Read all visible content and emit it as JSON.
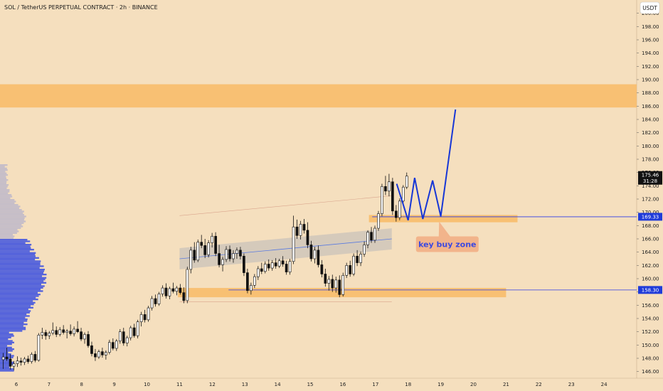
{
  "header": {
    "title": "SOL / TetherUS PERPETUAL CONTRACT · 2h · BINANCE"
  },
  "currency_button": {
    "label": "USDT"
  },
  "colors": {
    "background": "#f5dfbe",
    "zone": "#f8bc6a",
    "bull": "#ffffff",
    "bear": "#111111",
    "volume_profile": "#3a4fe0",
    "price_line": "#2b3be6",
    "drawing": "#1636d6",
    "badge_bg": "#1f3bd9",
    "annotation_bg": "#f2b48b"
  },
  "chart_data": {
    "type": "candlestick",
    "symbol": "SOL / TetherUS PERPETUAL CONTRACT",
    "interval": "2h",
    "exchange": "BINANCE",
    "y_axis": {
      "range": [
        145,
        202
      ],
      "ticks": [
        146,
        148,
        150,
        152,
        154,
        156,
        158,
        160,
        162,
        164,
        166,
        168,
        170,
        172,
        174,
        176,
        178,
        180,
        182,
        184,
        186,
        188,
        190,
        192,
        194,
        196,
        198,
        200
      ],
      "tick_labels": [
        "146.00",
        "148.00",
        "150.00",
        "152.00",
        "154.00",
        "156.00",
        "158.00",
        "160.00",
        "162.00",
        "164.00",
        "166.00",
        "168.00",
        "170.00",
        "172.00",
        "174.00",
        "176.00",
        "178.00",
        "180.00",
        "182.00",
        "184.00",
        "186.00",
        "188.00",
        "190.00",
        "192.00",
        "194.00",
        "196.00",
        "198.00",
        "200.00"
      ]
    },
    "x_axis": {
      "range": [
        5.5,
        25.0
      ],
      "ticks": [
        6,
        7,
        8,
        9,
        10,
        11,
        12,
        13,
        14,
        15,
        16,
        17,
        18,
        19,
        20,
        21,
        22,
        23,
        24
      ],
      "tick_labels": [
        "6",
        "7",
        "8",
        "9",
        "10",
        "11",
        "12",
        "13",
        "14",
        "15",
        "16",
        "17",
        "18",
        "19",
        "20",
        "21",
        "22",
        "23",
        "24"
      ]
    },
    "zones": [
      {
        "from": 185.8,
        "to": 189.3,
        "x_start": 5.5,
        "x_end": 25.0
      },
      {
        "from": 168.5,
        "to": 169.6,
        "x_start": 16.8,
        "x_end": 21.35
      },
      {
        "from": 157.2,
        "to": 158.6,
        "x_start": 10.95,
        "x_end": 21.0
      }
    ],
    "horizontal_lines": [
      {
        "value": 169.33,
        "x_start": 16.9
      },
      {
        "value": 158.3,
        "x_start": 12.5
      }
    ],
    "price_badges": [
      {
        "value": 175.46,
        "label": "175.46",
        "sub_label": "31:28",
        "style": "last"
      },
      {
        "value": 169.33,
        "label": "169.33",
        "style": "level"
      },
      {
        "value": 158.3,
        "label": "158.30",
        "style": "level"
      }
    ],
    "projection": {
      "x": [
        17.65,
        18.0,
        18.2,
        18.45,
        18.75,
        19.0,
        19.45
      ],
      "y": [
        174.3,
        168.8,
        175.2,
        169.0,
        174.8,
        169.4,
        185.5
      ]
    },
    "annotation": {
      "text": "key buy zone",
      "x": 19.2,
      "y": 165.2,
      "pointer_x": 18.95,
      "pointer_y": 168.6
    },
    "candles": [
      {
        "o": 147.8,
        "h": 148.8,
        "l": 146.4,
        "c": 148.2
      },
      {
        "o": 148.2,
        "h": 149.6,
        "l": 147.6,
        "c": 147.9
      },
      {
        "o": 147.9,
        "h": 148.6,
        "l": 146.3,
        "c": 146.8
      },
      {
        "o": 146.8,
        "h": 147.6,
        "l": 146.2,
        "c": 147.2
      },
      {
        "o": 147.2,
        "h": 148.3,
        "l": 146.7,
        "c": 147.6
      },
      {
        "o": 147.6,
        "h": 148.1,
        "l": 146.9,
        "c": 147.4
      },
      {
        "o": 147.4,
        "h": 148.2,
        "l": 147.0,
        "c": 147.9
      },
      {
        "o": 147.9,
        "h": 148.4,
        "l": 147.2,
        "c": 147.5
      },
      {
        "o": 147.5,
        "h": 148.9,
        "l": 147.2,
        "c": 148.6
      },
      {
        "o": 148.6,
        "h": 149.1,
        "l": 147.4,
        "c": 147.7
      },
      {
        "o": 147.7,
        "h": 151.8,
        "l": 147.5,
        "c": 151.5
      },
      {
        "o": 151.5,
        "h": 152.6,
        "l": 150.9,
        "c": 151.9
      },
      {
        "o": 151.9,
        "h": 152.3,
        "l": 150.8,
        "c": 151.4
      },
      {
        "o": 151.4,
        "h": 152.1,
        "l": 150.9,
        "c": 151.8
      },
      {
        "o": 151.8,
        "h": 153.4,
        "l": 151.5,
        "c": 152.2
      },
      {
        "o": 152.2,
        "h": 152.8,
        "l": 151.2,
        "c": 151.6
      },
      {
        "o": 151.6,
        "h": 152.7,
        "l": 151.3,
        "c": 152.3
      },
      {
        "o": 152.3,
        "h": 153.0,
        "l": 151.6,
        "c": 151.9
      },
      {
        "o": 151.9,
        "h": 152.4,
        "l": 151.0,
        "c": 152.1
      },
      {
        "o": 152.1,
        "h": 153.1,
        "l": 151.4,
        "c": 151.7
      },
      {
        "o": 151.7,
        "h": 152.8,
        "l": 151.3,
        "c": 152.4
      },
      {
        "o": 152.4,
        "h": 153.6,
        "l": 151.8,
        "c": 152.0
      },
      {
        "o": 152.0,
        "h": 152.6,
        "l": 150.6,
        "c": 150.9
      },
      {
        "o": 150.9,
        "h": 151.9,
        "l": 150.2,
        "c": 151.6
      },
      {
        "o": 151.6,
        "h": 152.1,
        "l": 149.6,
        "c": 149.9
      },
      {
        "o": 149.9,
        "h": 150.5,
        "l": 148.3,
        "c": 148.7
      },
      {
        "o": 148.7,
        "h": 149.4,
        "l": 147.6,
        "c": 148.2
      },
      {
        "o": 148.2,
        "h": 149.3,
        "l": 147.9,
        "c": 149.0
      },
      {
        "o": 149.0,
        "h": 149.6,
        "l": 148.1,
        "c": 148.5
      },
      {
        "o": 148.5,
        "h": 149.2,
        "l": 147.8,
        "c": 148.9
      },
      {
        "o": 148.9,
        "h": 150.8,
        "l": 148.6,
        "c": 150.4
      },
      {
        "o": 150.4,
        "h": 151.0,
        "l": 149.2,
        "c": 149.5
      },
      {
        "o": 149.5,
        "h": 150.9,
        "l": 149.1,
        "c": 150.6
      },
      {
        "o": 150.6,
        "h": 152.4,
        "l": 150.2,
        "c": 152.0
      },
      {
        "o": 152.0,
        "h": 152.6,
        "l": 149.9,
        "c": 150.3
      },
      {
        "o": 150.3,
        "h": 151.4,
        "l": 149.8,
        "c": 151.1
      },
      {
        "o": 151.1,
        "h": 152.9,
        "l": 150.7,
        "c": 152.6
      },
      {
        "o": 152.6,
        "h": 153.2,
        "l": 151.1,
        "c": 151.4
      },
      {
        "o": 151.4,
        "h": 153.8,
        "l": 151.0,
        "c": 153.5
      },
      {
        "o": 153.5,
        "h": 155.0,
        "l": 152.8,
        "c": 154.6
      },
      {
        "o": 154.6,
        "h": 155.3,
        "l": 153.4,
        "c": 153.8
      },
      {
        "o": 153.8,
        "h": 155.9,
        "l": 153.5,
        "c": 155.6
      },
      {
        "o": 155.6,
        "h": 157.4,
        "l": 155.2,
        "c": 157.0
      },
      {
        "o": 157.0,
        "h": 157.6,
        "l": 155.8,
        "c": 156.2
      },
      {
        "o": 156.2,
        "h": 158.0,
        "l": 155.9,
        "c": 157.7
      },
      {
        "o": 157.7,
        "h": 159.0,
        "l": 157.3,
        "c": 158.6
      },
      {
        "o": 158.6,
        "h": 159.3,
        "l": 157.0,
        "c": 157.4
      },
      {
        "o": 157.4,
        "h": 158.8,
        "l": 156.9,
        "c": 158.5
      },
      {
        "o": 158.5,
        "h": 159.4,
        "l": 157.8,
        "c": 158.1
      },
      {
        "o": 158.1,
        "h": 158.9,
        "l": 157.5,
        "c": 158.6
      },
      {
        "o": 158.6,
        "h": 159.2,
        "l": 157.6,
        "c": 157.9
      },
      {
        "o": 157.9,
        "h": 158.7,
        "l": 156.3,
        "c": 156.7
      },
      {
        "o": 156.7,
        "h": 161.8,
        "l": 156.3,
        "c": 161.4
      },
      {
        "o": 161.4,
        "h": 164.8,
        "l": 160.8,
        "c": 164.3
      },
      {
        "o": 164.3,
        "h": 165.5,
        "l": 162.4,
        "c": 162.8
      },
      {
        "o": 162.8,
        "h": 165.9,
        "l": 162.5,
        "c": 165.5
      },
      {
        "o": 165.5,
        "h": 166.6,
        "l": 164.6,
        "c": 165.0
      },
      {
        "o": 165.0,
        "h": 166.0,
        "l": 163.1,
        "c": 163.6
      },
      {
        "o": 163.6,
        "h": 165.8,
        "l": 163.2,
        "c": 165.4
      },
      {
        "o": 165.4,
        "h": 166.9,
        "l": 164.7,
        "c": 166.4
      },
      {
        "o": 166.4,
        "h": 167.0,
        "l": 163.4,
        "c": 163.8
      },
      {
        "o": 163.8,
        "h": 165.1,
        "l": 161.7,
        "c": 162.1
      },
      {
        "o": 162.1,
        "h": 163.3,
        "l": 161.1,
        "c": 162.9
      },
      {
        "o": 162.9,
        "h": 164.9,
        "l": 162.5,
        "c": 164.4
      },
      {
        "o": 164.4,
        "h": 165.0,
        "l": 162.6,
        "c": 163.0
      },
      {
        "o": 163.0,
        "h": 164.3,
        "l": 162.4,
        "c": 163.8
      },
      {
        "o": 163.8,
        "h": 164.7,
        "l": 163.0,
        "c": 164.3
      },
      {
        "o": 164.3,
        "h": 164.8,
        "l": 162.9,
        "c": 163.4
      },
      {
        "o": 163.4,
        "h": 163.8,
        "l": 160.4,
        "c": 160.9
      },
      {
        "o": 160.9,
        "h": 161.5,
        "l": 157.8,
        "c": 158.2
      },
      {
        "o": 158.2,
        "h": 159.4,
        "l": 157.6,
        "c": 159.0
      },
      {
        "o": 159.0,
        "h": 160.7,
        "l": 158.6,
        "c": 160.3
      },
      {
        "o": 160.3,
        "h": 161.9,
        "l": 159.8,
        "c": 161.5
      },
      {
        "o": 161.5,
        "h": 162.4,
        "l": 160.7,
        "c": 161.1
      },
      {
        "o": 161.1,
        "h": 162.6,
        "l": 160.8,
        "c": 162.2
      },
      {
        "o": 162.2,
        "h": 162.9,
        "l": 161.2,
        "c": 161.6
      },
      {
        "o": 161.6,
        "h": 162.8,
        "l": 161.2,
        "c": 162.4
      },
      {
        "o": 162.4,
        "h": 163.1,
        "l": 161.5,
        "c": 161.9
      },
      {
        "o": 161.9,
        "h": 163.0,
        "l": 161.6,
        "c": 162.7
      },
      {
        "o": 162.7,
        "h": 163.4,
        "l": 161.8,
        "c": 162.2
      },
      {
        "o": 162.2,
        "h": 162.7,
        "l": 160.6,
        "c": 161.0
      },
      {
        "o": 161.0,
        "h": 163.0,
        "l": 160.6,
        "c": 162.6
      },
      {
        "o": 162.6,
        "h": 169.5,
        "l": 162.2,
        "c": 167.8
      },
      {
        "o": 167.8,
        "h": 168.9,
        "l": 166.0,
        "c": 166.5
      },
      {
        "o": 166.5,
        "h": 168.7,
        "l": 165.9,
        "c": 168.2
      },
      {
        "o": 168.2,
        "h": 169.0,
        "l": 166.8,
        "c": 167.3
      },
      {
        "o": 167.3,
        "h": 168.5,
        "l": 164.6,
        "c": 165.1
      },
      {
        "o": 165.1,
        "h": 165.7,
        "l": 162.6,
        "c": 163.0
      },
      {
        "o": 163.0,
        "h": 164.8,
        "l": 162.3,
        "c": 164.3
      },
      {
        "o": 164.3,
        "h": 165.0,
        "l": 161.7,
        "c": 162.1
      },
      {
        "o": 162.1,
        "h": 162.8,
        "l": 160.2,
        "c": 160.7
      },
      {
        "o": 160.7,
        "h": 161.5,
        "l": 158.8,
        "c": 159.3
      },
      {
        "o": 159.3,
        "h": 160.4,
        "l": 158.2,
        "c": 159.9
      },
      {
        "o": 159.9,
        "h": 160.6,
        "l": 158.0,
        "c": 158.6
      },
      {
        "o": 158.6,
        "h": 160.3,
        "l": 157.9,
        "c": 159.8
      },
      {
        "o": 159.8,
        "h": 160.5,
        "l": 157.2,
        "c": 157.6
      },
      {
        "o": 157.6,
        "h": 160.9,
        "l": 157.3,
        "c": 160.5
      },
      {
        "o": 160.5,
        "h": 162.4,
        "l": 160.1,
        "c": 162.0
      },
      {
        "o": 162.0,
        "h": 162.7,
        "l": 160.3,
        "c": 160.7
      },
      {
        "o": 160.7,
        "h": 163.8,
        "l": 160.4,
        "c": 163.4
      },
      {
        "o": 163.4,
        "h": 164.3,
        "l": 161.9,
        "c": 162.4
      },
      {
        "o": 162.4,
        "h": 164.1,
        "l": 161.9,
        "c": 163.7
      },
      {
        "o": 163.7,
        "h": 165.6,
        "l": 163.3,
        "c": 165.1
      },
      {
        "o": 165.1,
        "h": 167.3,
        "l": 164.6,
        "c": 167.0
      },
      {
        "o": 167.0,
        "h": 167.8,
        "l": 165.4,
        "c": 165.8
      },
      {
        "o": 165.8,
        "h": 168.0,
        "l": 165.4,
        "c": 167.6
      },
      {
        "o": 167.6,
        "h": 170.2,
        "l": 167.2,
        "c": 169.8
      },
      {
        "o": 169.8,
        "h": 174.3,
        "l": 169.4,
        "c": 173.9
      },
      {
        "o": 173.9,
        "h": 175.5,
        "l": 172.6,
        "c": 173.2
      },
      {
        "o": 173.2,
        "h": 175.8,
        "l": 172.4,
        "c": 174.6
      },
      {
        "o": 174.6,
        "h": 175.2,
        "l": 169.6,
        "c": 170.2
      },
      {
        "o": 170.2,
        "h": 171.1,
        "l": 168.6,
        "c": 169.2
      },
      {
        "o": 169.2,
        "h": 172.1,
        "l": 168.8,
        "c": 171.7
      },
      {
        "o": 171.7,
        "h": 174.1,
        "l": 171.3,
        "c": 173.8
      },
      {
        "o": 173.8,
        "h": 176.0,
        "l": 173.5,
        "c": 175.46
      }
    ],
    "candle_x": {
      "start": 5.6,
      "step": 0.1084
    }
  }
}
